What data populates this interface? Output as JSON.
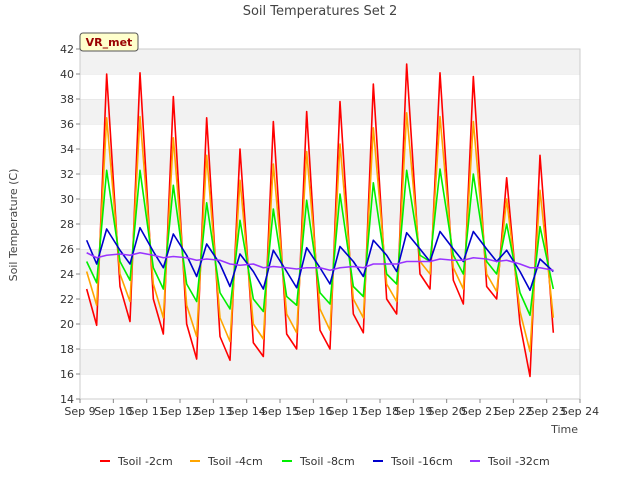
{
  "chart_data": {
    "type": "line",
    "title": "Soil Temperatures Set 2",
    "xlabel": "Time",
    "ylabel": "Soil Temperature (C)",
    "ylim": [
      14,
      42
    ],
    "yticks": [
      14,
      16,
      18,
      20,
      22,
      24,
      26,
      28,
      30,
      32,
      34,
      36,
      38,
      40,
      42
    ],
    "xlim": [
      9,
      24
    ],
    "xticks": [
      9,
      10,
      11,
      12,
      13,
      14,
      15,
      16,
      17,
      18,
      19,
      20,
      21,
      22,
      23,
      24
    ],
    "xtick_labels": [
      "Sep 9",
      "Sep 10",
      "Sep 11",
      "Sep 12",
      "Sep 13",
      "Sep 14",
      "Sep 15",
      "Sep 16",
      "Sep 17",
      "Sep 18",
      "Sep 19",
      "Sep 20",
      "Sep 21",
      "Sep 22",
      "Sep 23",
      "Sep 24"
    ],
    "grid": "horizontal-bands",
    "legend_position": "bottom",
    "badge": "VR_met",
    "x": [
      9.2,
      9.5,
      9.8,
      10.2,
      10.5,
      10.8,
      11.2,
      11.5,
      11.8,
      12.2,
      12.5,
      12.8,
      13.2,
      13.5,
      13.8,
      14.2,
      14.5,
      14.8,
      15.2,
      15.5,
      15.8,
      16.2,
      16.5,
      16.8,
      17.2,
      17.5,
      17.8,
      18.2,
      18.5,
      18.8,
      19.2,
      19.5,
      19.8,
      20.2,
      20.5,
      20.8,
      21.2,
      21.5,
      21.8,
      22.2,
      22.5,
      22.8,
      23.2
    ],
    "series": [
      {
        "name": "Tsoil -2cm",
        "color": "#ff0000",
        "values": [
          22.8,
          19.9,
          40.0,
          23.0,
          20.2,
          40.1,
          22.0,
          19.2,
          38.2,
          20.0,
          17.2,
          36.5,
          19.0,
          17.1,
          34.0,
          18.5,
          17.4,
          36.2,
          19.2,
          18.0,
          37.0,
          19.5,
          18.0,
          37.8,
          20.8,
          19.3,
          39.2,
          22.0,
          20.8,
          40.8,
          24.0,
          22.8,
          40.1,
          23.5,
          21.6,
          39.8,
          23.0,
          22.0,
          31.7,
          20.0,
          15.8,
          33.5,
          19.3
        ]
      },
      {
        "name": "Tsoil -4cm",
        "color": "#ffa500",
        "values": [
          24.2,
          21.5,
          36.5,
          24.0,
          21.8,
          36.6,
          23.2,
          20.5,
          34.9,
          21.5,
          19.0,
          33.5,
          20.5,
          18.6,
          31.5,
          20.0,
          18.8,
          32.8,
          20.8,
          19.3,
          33.8,
          21.2,
          19.5,
          34.4,
          22.0,
          20.5,
          35.7,
          23.2,
          21.8,
          36.9,
          25.0,
          24.0,
          36.6,
          24.5,
          22.8,
          36.2,
          24.0,
          22.6,
          30.0,
          21.0,
          17.8,
          30.7,
          20.5
        ]
      },
      {
        "name": "Tsoil -8cm",
        "color": "#00ee00",
        "values": [
          25.0,
          23.3,
          32.3,
          25.0,
          23.5,
          32.3,
          24.5,
          22.8,
          31.1,
          23.2,
          21.8,
          29.7,
          22.5,
          21.2,
          28.3,
          22.0,
          21.0,
          29.2,
          22.2,
          21.5,
          29.9,
          22.5,
          21.6,
          30.4,
          23.0,
          22.2,
          31.3,
          24.0,
          23.2,
          32.3,
          25.5,
          25.0,
          32.4,
          25.5,
          24.0,
          32.0,
          25.0,
          24.0,
          28.0,
          22.5,
          20.7,
          27.8,
          22.8
        ]
      },
      {
        "name": "Tsoil -16cm",
        "color": "#0000cc",
        "values": [
          26.7,
          24.8,
          27.6,
          25.9,
          24.8,
          27.7,
          25.8,
          24.5,
          27.2,
          25.5,
          23.8,
          26.4,
          24.8,
          23.0,
          25.6,
          24.2,
          22.8,
          25.9,
          24.2,
          22.9,
          26.1,
          24.5,
          23.2,
          26.2,
          25.0,
          23.8,
          26.7,
          25.5,
          24.2,
          27.3,
          26.0,
          25.0,
          27.4,
          26.0,
          25.0,
          27.4,
          26.0,
          25.0,
          25.9,
          24.2,
          22.7,
          25.2,
          24.2
        ]
      },
      {
        "name": "Tsoil -32cm",
        "color": "#9933ff",
        "values": [
          25.7,
          25.3,
          25.5,
          25.6,
          25.5,
          25.7,
          25.5,
          25.3,
          25.4,
          25.3,
          25.1,
          25.2,
          25.1,
          24.8,
          24.7,
          24.8,
          24.5,
          24.6,
          24.5,
          24.4,
          24.5,
          24.5,
          24.3,
          24.5,
          24.6,
          24.5,
          24.8,
          24.8,
          24.8,
          25.0,
          25.0,
          25.0,
          25.2,
          25.1,
          25.1,
          25.3,
          25.2,
          25.0,
          25.1,
          24.8,
          24.5,
          24.5,
          24.3
        ]
      }
    ]
  }
}
